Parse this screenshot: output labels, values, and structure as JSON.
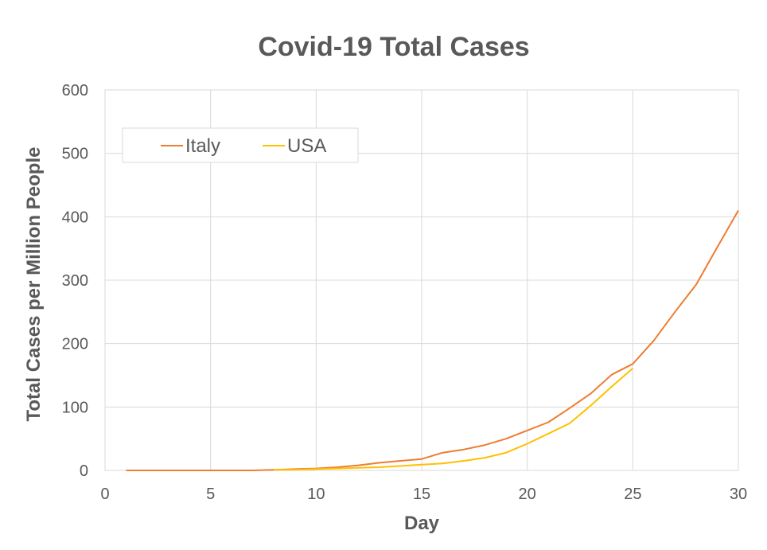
{
  "chart_data": {
    "type": "line",
    "title": "Covid-19 Total Cases",
    "xlabel": "Day",
    "ylabel": "Total Cases per Million People",
    "xlim": [
      0,
      30
    ],
    "ylim": [
      0,
      600
    ],
    "xticks": [
      0,
      5,
      10,
      15,
      20,
      25,
      30
    ],
    "yticks": [
      0,
      100,
      200,
      300,
      400,
      500,
      600
    ],
    "grid": true,
    "legend_position": "top-left",
    "series": [
      {
        "name": "Italy",
        "color": "#ED7D31",
        "x": [
          1,
          2,
          3,
          4,
          5,
          6,
          7,
          8,
          9,
          10,
          11,
          12,
          13,
          14,
          15,
          16,
          17,
          18,
          19,
          20,
          21,
          22,
          23,
          24,
          25,
          26,
          27,
          28,
          29,
          30
        ],
        "y": [
          0,
          0,
          0,
          0,
          0,
          0,
          0,
          1,
          2,
          3,
          5,
          8,
          12,
          15,
          18,
          28,
          33,
          40,
          50,
          63,
          76,
          98,
          121,
          151,
          168,
          205,
          250,
          293,
          352,
          410
        ]
      },
      {
        "name": "USA",
        "color": "#FFC000",
        "x": [
          8,
          9,
          10,
          11,
          12,
          13,
          14,
          15,
          16,
          17,
          18,
          19,
          20,
          21,
          22,
          23,
          24,
          25
        ],
        "y": [
          1,
          1,
          2,
          3,
          4,
          5,
          7,
          9,
          11,
          15,
          20,
          28,
          42,
          58,
          74,
          102,
          132,
          161
        ]
      }
    ]
  }
}
